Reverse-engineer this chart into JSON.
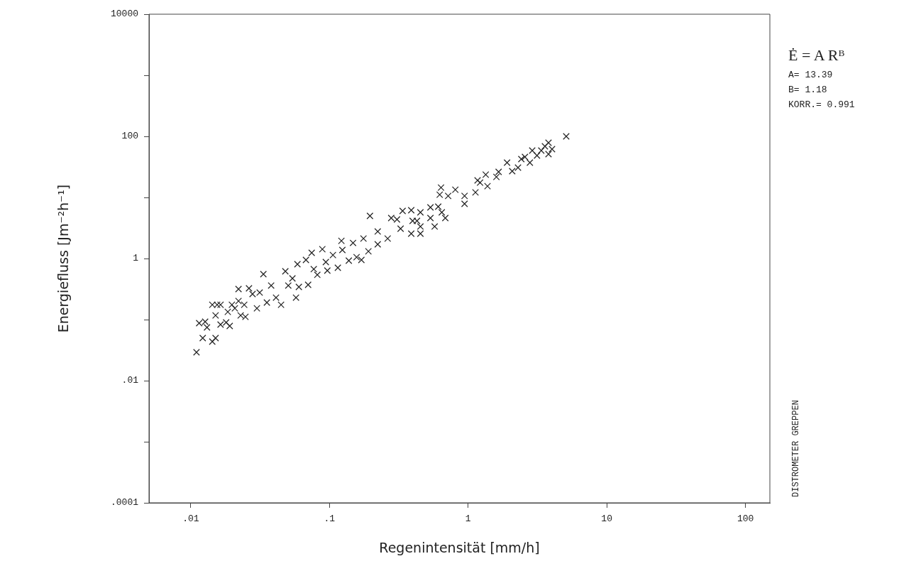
{
  "chart_data": {
    "type": "scatter",
    "xlabel": "Regenintensität [mm/h]",
    "ylabel": "Energiefluss [Jm⁻²h⁻¹]",
    "log": "xy",
    "xlim": [
      0.005,
      150
    ],
    "ylim": [
      0.0001,
      10000
    ],
    "xticks": [
      {
        "value": 0.01,
        "label": ".01"
      },
      {
        "value": 0.1,
        "label": ".1"
      },
      1,
      10,
      100
    ],
    "yticks": [
      {
        "value": 0.0001,
        "label": ".0001"
      },
      {
        "value": 0.001,
        "label": null
      },
      {
        "value": 0.01,
        "label": ".01"
      },
      {
        "value": 0.1,
        "label": null
      },
      1,
      {
        "value": 10,
        "label": null
      },
      100,
      {
        "value": 1000,
        "label": null
      },
      10000
    ],
    "grid": false,
    "legend": false,
    "marker": "cross",
    "annotations": [
      "Ė = A Rᴮ",
      "A= 13.39",
      "B= 1.18",
      "KORR.= 0.991",
      "DISTROMETER GREPPEN"
    ],
    "series": [
      {
        "color": "#222222",
        "x": [
          0.011,
          0.0115,
          0.0127,
          0.0122,
          0.0131,
          0.0143,
          0.0151,
          0.0143,
          0.0155,
          0.0164,
          0.0151,
          0.0164,
          0.018,
          0.0191,
          0.0185,
          0.0198,
          0.0208,
          0.0221,
          0.0221,
          0.0229,
          0.0248,
          0.0243,
          0.0263,
          0.0279,
          0.03,
          0.0314,
          0.0334,
          0.0354,
          0.038,
          0.0412,
          0.0448,
          0.0481,
          0.0505,
          0.0541,
          0.0574,
          0.0602,
          0.0588,
          0.0677,
          0.0702,
          0.0745,
          0.0771,
          0.0818,
          0.0889,
          0.0942,
          0.0966,
          0.106,
          0.115,
          0.122,
          0.124,
          0.138,
          0.148,
          0.157,
          0.17,
          0.176,
          0.191,
          0.223,
          0.196,
          0.223,
          0.263,
          0.279,
          0.307,
          0.326,
          0.337,
          0.389,
          0.398,
          0.389,
          0.428,
          0.453,
          0.453,
          0.453,
          0.535,
          0.535,
          0.574,
          0.609,
          0.646,
          0.685,
          0.638,
          0.624,
          0.718,
          0.809,
          0.943,
          0.943,
          1.13,
          1.17,
          1.22,
          1.34,
          1.38,
          1.6,
          1.66,
          1.91,
          2.08,
          2.29,
          2.42,
          2.57,
          2.79,
          2.9,
          3.14,
          3.37,
          3.58,
          3.8,
          3.8,
          4.03,
          5.1
        ],
        "values": [
          0.0292,
          0.0875,
          0.0923,
          0.0499,
          0.0745,
          0.0436,
          0.0499,
          0.175,
          0.175,
          0.175,
          0.117,
          0.0829,
          0.0898,
          0.0786,
          0.134,
          0.175,
          0.153,
          0.316,
          0.201,
          0.117,
          0.111,
          0.175,
          0.325,
          0.262,
          0.153,
          0.277,
          0.555,
          0.19,
          0.361,
          0.229,
          0.175,
          0.618,
          0.361,
          0.472,
          0.229,
          0.343,
          0.807,
          0.948,
          0.371,
          1.24,
          0.67,
          0.541,
          1.42,
          0.875,
          0.634,
          1.14,
          0.706,
          1.95,
          1.38,
          0.923,
          1.8,
          1.05,
          0.948,
          2.12,
          1.31,
          1.71,
          4.99,
          2.77,
          2.12,
          4.6,
          4.36,
          3.08,
          6.01,
          6.18,
          4.13,
          2.55,
          4.13,
          5.7,
          3.34,
          2.55,
          6.87,
          4.6,
          3.34,
          7.06,
          5.7,
          4.6,
          14.5,
          11.1,
          10.6,
          13.4,
          10.6,
          7.86,
          12.1,
          19.0,
          17.5,
          23.6,
          15.3,
          21.7,
          26.2,
          37.1,
          26.9,
          30.8,
          42.5,
          46.0,
          37.1,
          58.5,
          48.5,
          58.5,
          68.7,
          78.6,
          51.2,
          61.8,
          100
        ]
      }
    ]
  }
}
